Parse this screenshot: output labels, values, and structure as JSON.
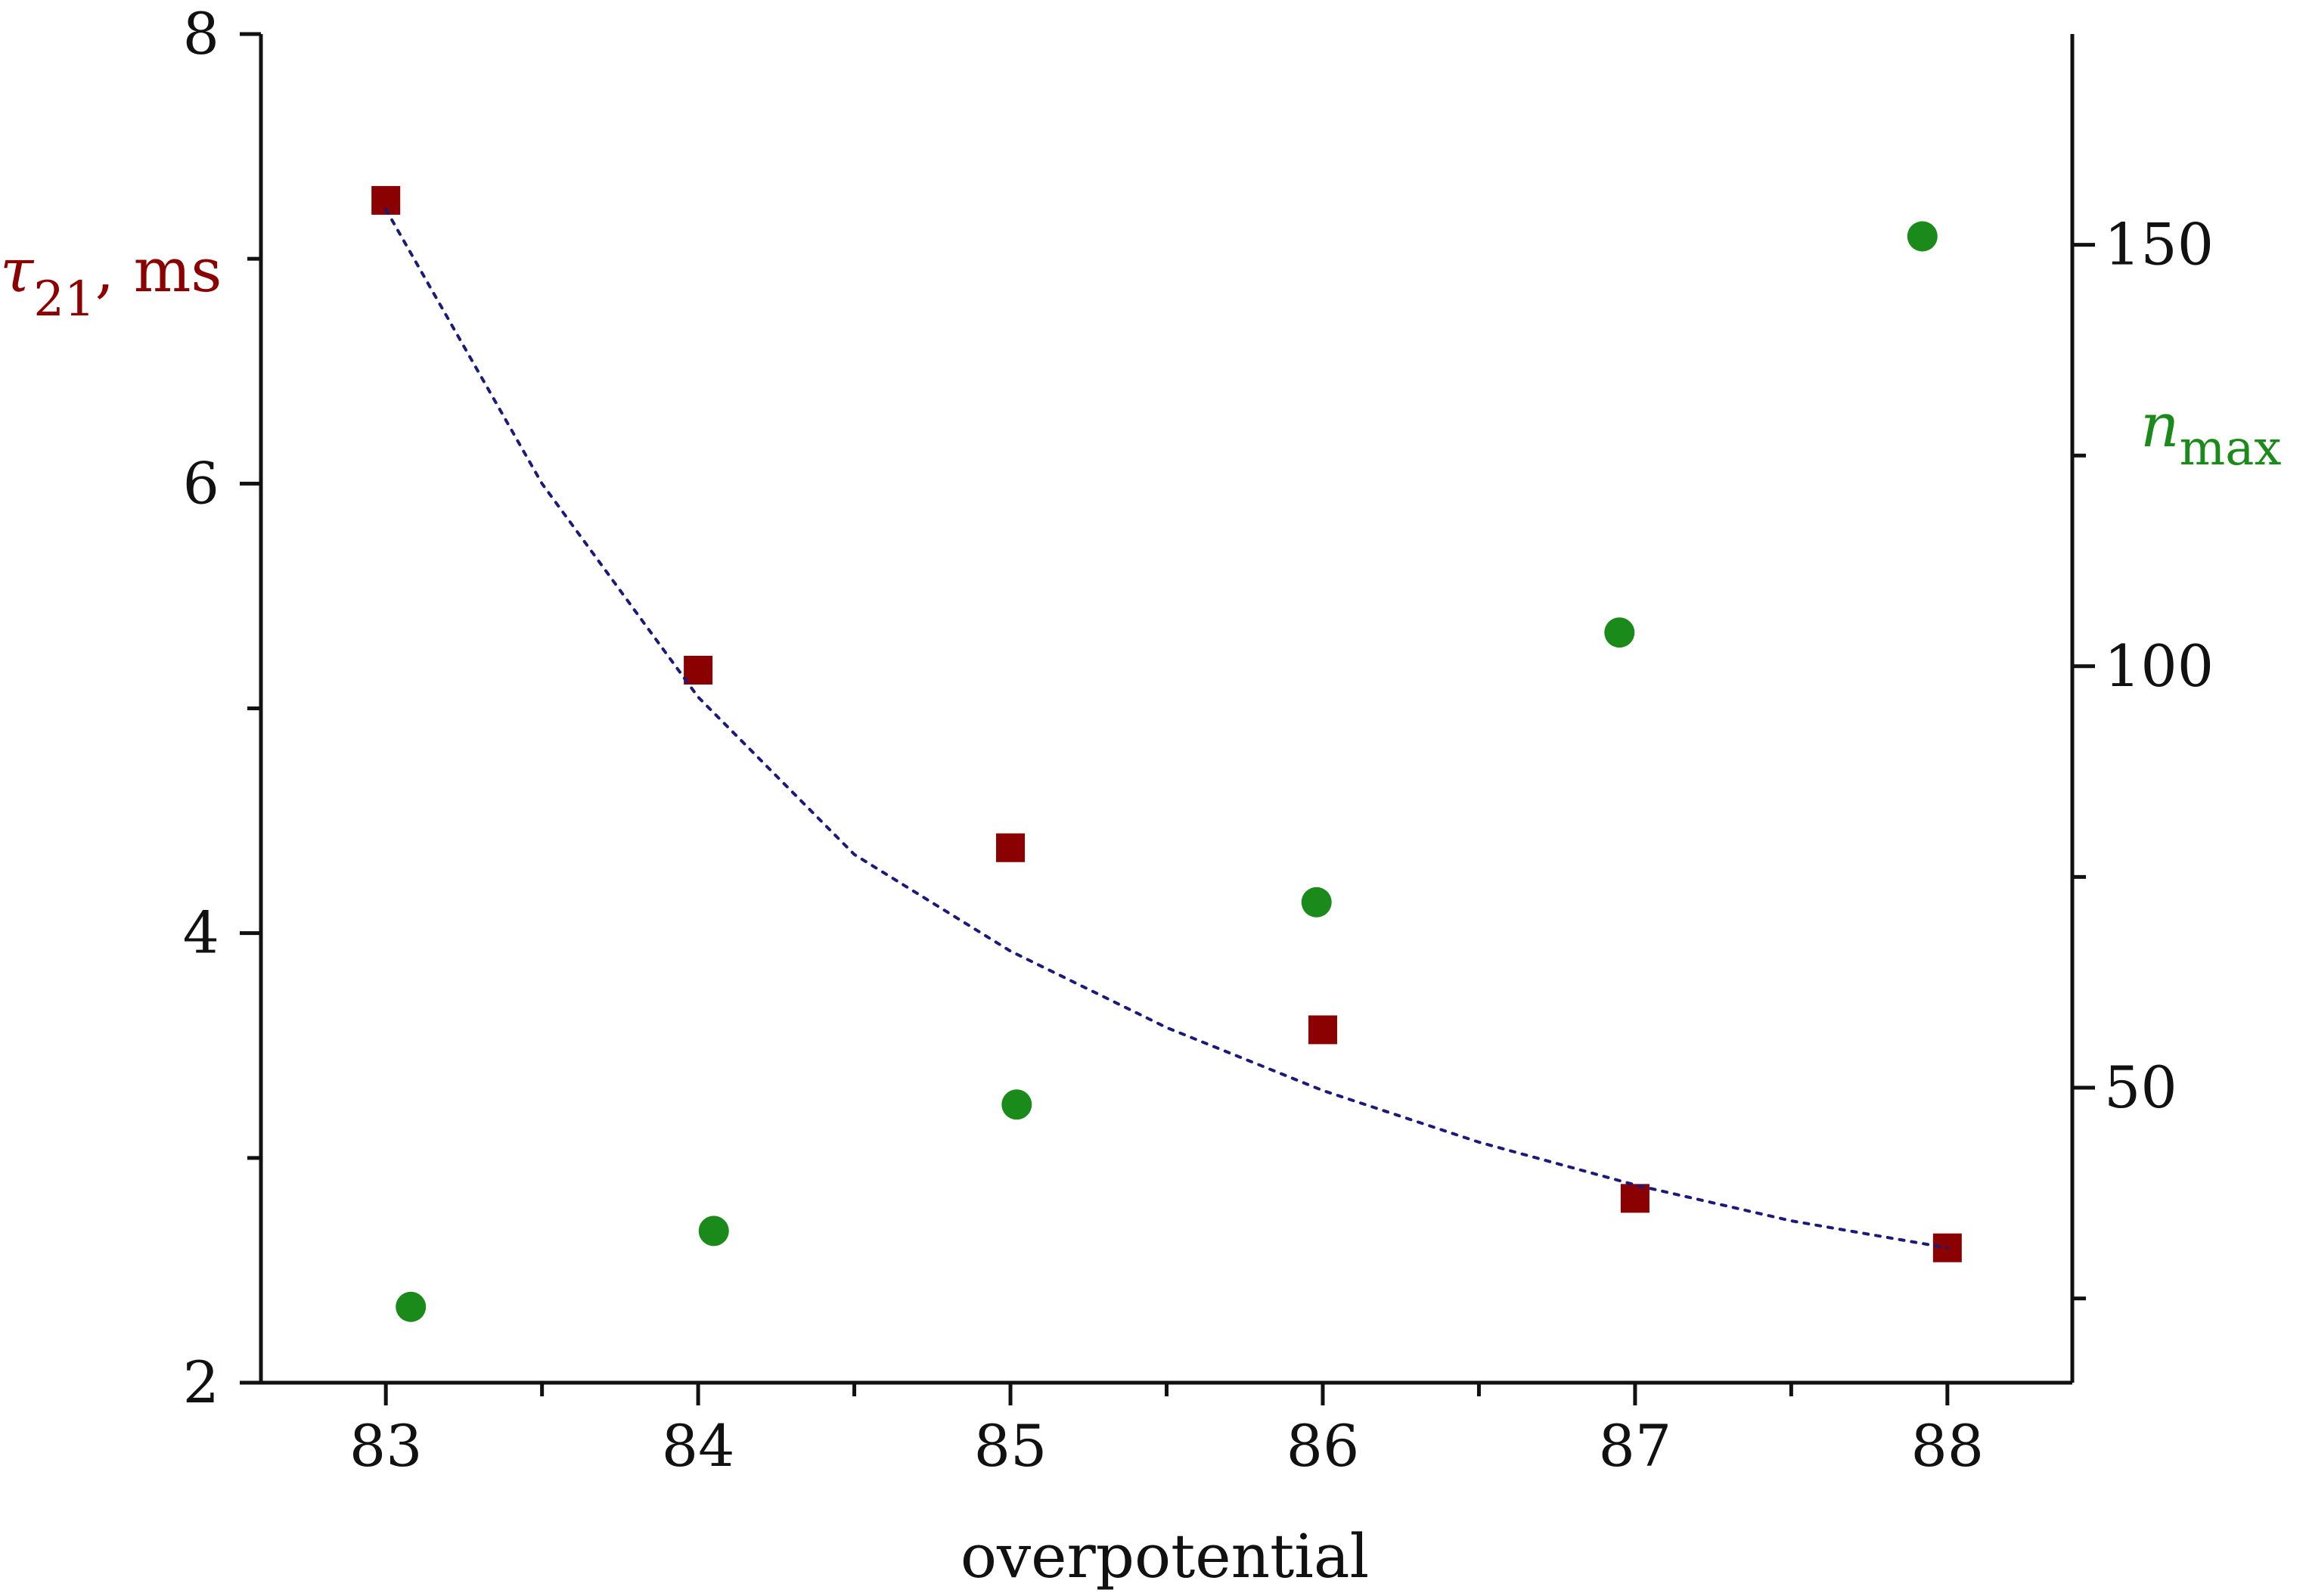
{
  "chart_data": {
    "type": "scatter",
    "title": "",
    "xlabel": "overpotential",
    "x_ticks": [
      "83",
      "84",
      "85",
      "86",
      "87",
      "88"
    ],
    "xlim": [
      82.6,
      88.4
    ],
    "y_left": {
      "label_main": "τ",
      "label_sub": "21",
      "label_rest": ", ms",
      "ticks": [
        "2",
        "4",
        "6",
        "8"
      ],
      "ylim": [
        2,
        8
      ],
      "color": "#8b0000"
    },
    "y_right": {
      "label_main": "n",
      "label_sub": "max",
      "ticks": [
        "50",
        "100",
        "150"
      ],
      "ylim": [
        15,
        175
      ],
      "color": "#1a8a1a"
    },
    "series": [
      {
        "axis": "left",
        "marker": "square",
        "color": "#8b0000",
        "x": [
          83,
          84,
          85,
          86,
          87,
          88
        ],
        "y": [
          7.26,
          5.17,
          4.38,
          3.57,
          2.82,
          2.6
        ]
      },
      {
        "axis": "right",
        "marker": "circle",
        "color": "#1a8a1a",
        "x": [
          83.08,
          84.05,
          85.02,
          85.98,
          86.95,
          87.92
        ],
        "y": [
          24,
          33,
          48,
          72,
          104,
          151
        ]
      },
      {
        "axis": "left",
        "marker": "none",
        "line": "dotted",
        "color": "#1a1a7a",
        "x": [
          83,
          83.5,
          84,
          84.5,
          85,
          85.5,
          86,
          86.5,
          87,
          87.5,
          88
        ],
        "y": [
          7.22,
          6.0,
          5.05,
          4.35,
          3.92,
          3.58,
          3.3,
          3.07,
          2.88,
          2.72,
          2.6
        ]
      }
    ],
    "grid": false,
    "legend": "none"
  }
}
